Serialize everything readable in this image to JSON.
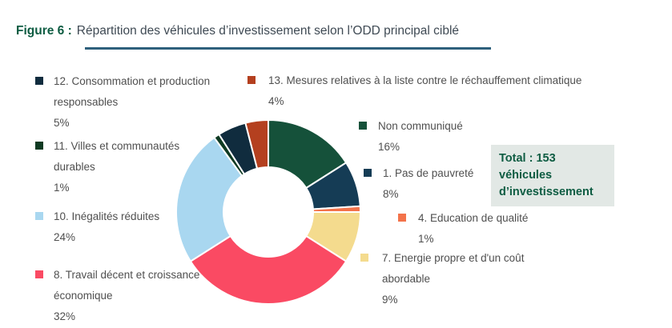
{
  "figure": {
    "label": "Figure 6 :",
    "title": "Répartition des véhicules d’investissement selon l’ODD principal ciblé"
  },
  "total_box": {
    "text": "Total : 153 véhicules d’investissement"
  },
  "legend": {
    "left": [
      {
        "label": "12. Consommation et production responsables",
        "pct": "5%",
        "color": "#102C3E"
      },
      {
        "label": "11. Villes et communautés durables",
        "pct": "1%",
        "color": "#0F3A22"
      },
      {
        "label": "10. Inégalités réduites",
        "pct": "24%",
        "color": "#A9D7F0"
      },
      {
        "label": "8. Travail décent et croissance économique",
        "pct": "32%",
        "color": "#FA4A63"
      }
    ],
    "right": [
      {
        "label": "13. Mesures relatives à la liste contre le réchauffement climatique",
        "pct": "4%",
        "color": "#B4401F"
      },
      {
        "label": "Non communiqué",
        "pct": "16%",
        "color": "#15513A"
      },
      {
        "label": "1. Pas de pauvreté",
        "pct": "8%",
        "color": "#153C55"
      },
      {
        "label": "4. Education de qualité",
        "pct": "1%",
        "color": "#F3734A"
      },
      {
        "label": "7. Energie propre et d'un coût abordable",
        "pct": "9%",
        "color": "#F4DB8E"
      }
    ]
  },
  "chart_data": {
    "type": "pie",
    "subtype": "donut",
    "title": "Figure 6 : Répartition des véhicules d’investissement selon l’ODD principal ciblé",
    "total_units": 153,
    "units_label": "véhicules d’investissement",
    "start_angle_deg": 0,
    "direction": "clockwise",
    "legend_position": "around",
    "segments": [
      {
        "label": "Non communiqué",
        "value": 16,
        "color": "#15513A"
      },
      {
        "label": "1. Pas de pauvreté",
        "value": 8,
        "color": "#153C55"
      },
      {
        "label": "4. Education de qualité",
        "value": 1,
        "color": "#F3734A"
      },
      {
        "label": "7. Energie propre et d'un coût abordable",
        "value": 9,
        "color": "#F4DB8E"
      },
      {
        "label": "8. Travail décent et croissance économique",
        "value": 32,
        "color": "#FA4A63"
      },
      {
        "label": "10. Inégalités réduites",
        "value": 24,
        "color": "#A9D7F0"
      },
      {
        "label": "11. Villes et communautés durables",
        "value": 1,
        "color": "#0F3A22"
      },
      {
        "label": "12. Consommation et production responsables",
        "value": 5,
        "color": "#102C3E"
      },
      {
        "label": "13. Mesures relatives à la liste contre le réchauffement climatique",
        "value": 4,
        "color": "#B4401F"
      }
    ]
  }
}
